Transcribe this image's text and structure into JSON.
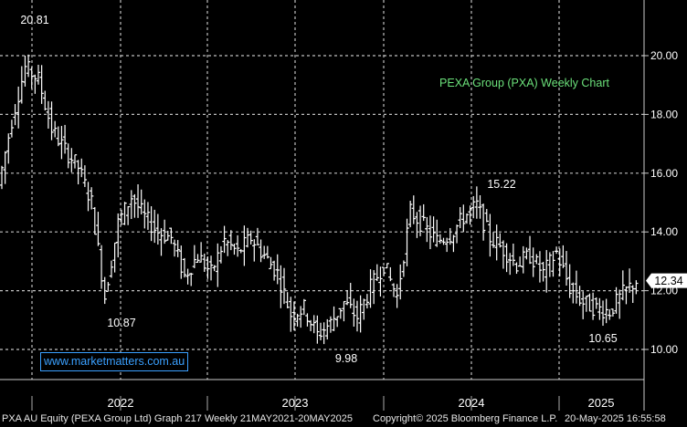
{
  "chart_data": {
    "type": "ohlc",
    "title": "PEXA Group (PXA) Weekly Chart",
    "ylim": [
      9.3,
      21.5
    ],
    "y_ticks": [
      "10.00",
      "12.00",
      "14.00",
      "16.00",
      "18.00",
      "20.00"
    ],
    "x_labels": [
      "2022",
      "2023",
      "2024",
      "2025"
    ],
    "last_price": "12.34",
    "annotations": [
      {
        "text": "20.81",
        "value": 20.81
      },
      {
        "text": "10.87",
        "value": 10.87
      },
      {
        "text": "9.98",
        "value": 9.98
      },
      {
        "text": "15.22",
        "value": 15.22
      },
      {
        "text": "10.65",
        "value": 10.65
      }
    ],
    "series": [
      {
        "name": "PXA",
        "x": [
          "2021-05",
          "2021-06",
          "2021-07",
          "2021-08",
          "2021-09",
          "2021-10",
          "2021-11",
          "2021-12",
          "2022-01",
          "2022-02",
          "2022-03",
          "2022-04",
          "2022-05",
          "2022-06",
          "2022-07",
          "2022-08",
          "2022-09",
          "2022-10",
          "2022-11",
          "2022-12",
          "2023-01",
          "2023-02",
          "2023-03",
          "2023-04",
          "2023-05",
          "2023-06",
          "2023-07",
          "2023-08",
          "2023-09",
          "2023-10",
          "2023-11",
          "2023-12",
          "2024-01",
          "2024-02",
          "2024-03",
          "2024-04",
          "2024-05",
          "2024-06",
          "2024-07",
          "2024-08",
          "2024-09",
          "2024-10",
          "2024-11",
          "2024-12",
          "2025-01",
          "2025-02",
          "2025-03",
          "2025-04",
          "2025-05"
        ],
        "close": [
          15.6,
          17.8,
          19.6,
          19.2,
          17.5,
          16.8,
          16.2,
          15.0,
          11.8,
          14.3,
          15.2,
          14.5,
          14.0,
          13.8,
          12.5,
          13.2,
          12.6,
          13.7,
          13.3,
          13.8,
          13.2,
          12.6,
          11.2,
          11.4,
          10.5,
          10.9,
          11.6,
          11.1,
          12.1,
          12.9,
          11.8,
          14.7,
          14.2,
          13.7,
          13.9,
          14.5,
          14.9,
          13.8,
          13.4,
          12.9,
          13.2,
          12.6,
          13.3,
          12.1,
          11.6,
          11.4,
          11.3,
          11.9,
          12.34
        ]
      }
    ],
    "grid": true,
    "y_axis_side": "right"
  },
  "watermark": "www.marketmatters.com.au",
  "footer": {
    "left": "PXA AU Equity (PEXA Group Ltd) Graph 217  Weekly 21MAY2021-20MAY2025",
    "center": "Copyright© 2025 Bloomberg Finance L.P.",
    "right": "20-May-2025 16:55:58"
  },
  "colors": {
    "background": "#000000",
    "bars": "#ffffff",
    "grid": "#bfbfbf",
    "title": "#6be07a",
    "badge": "#ffffff",
    "watermark": "#3aa0ff"
  }
}
